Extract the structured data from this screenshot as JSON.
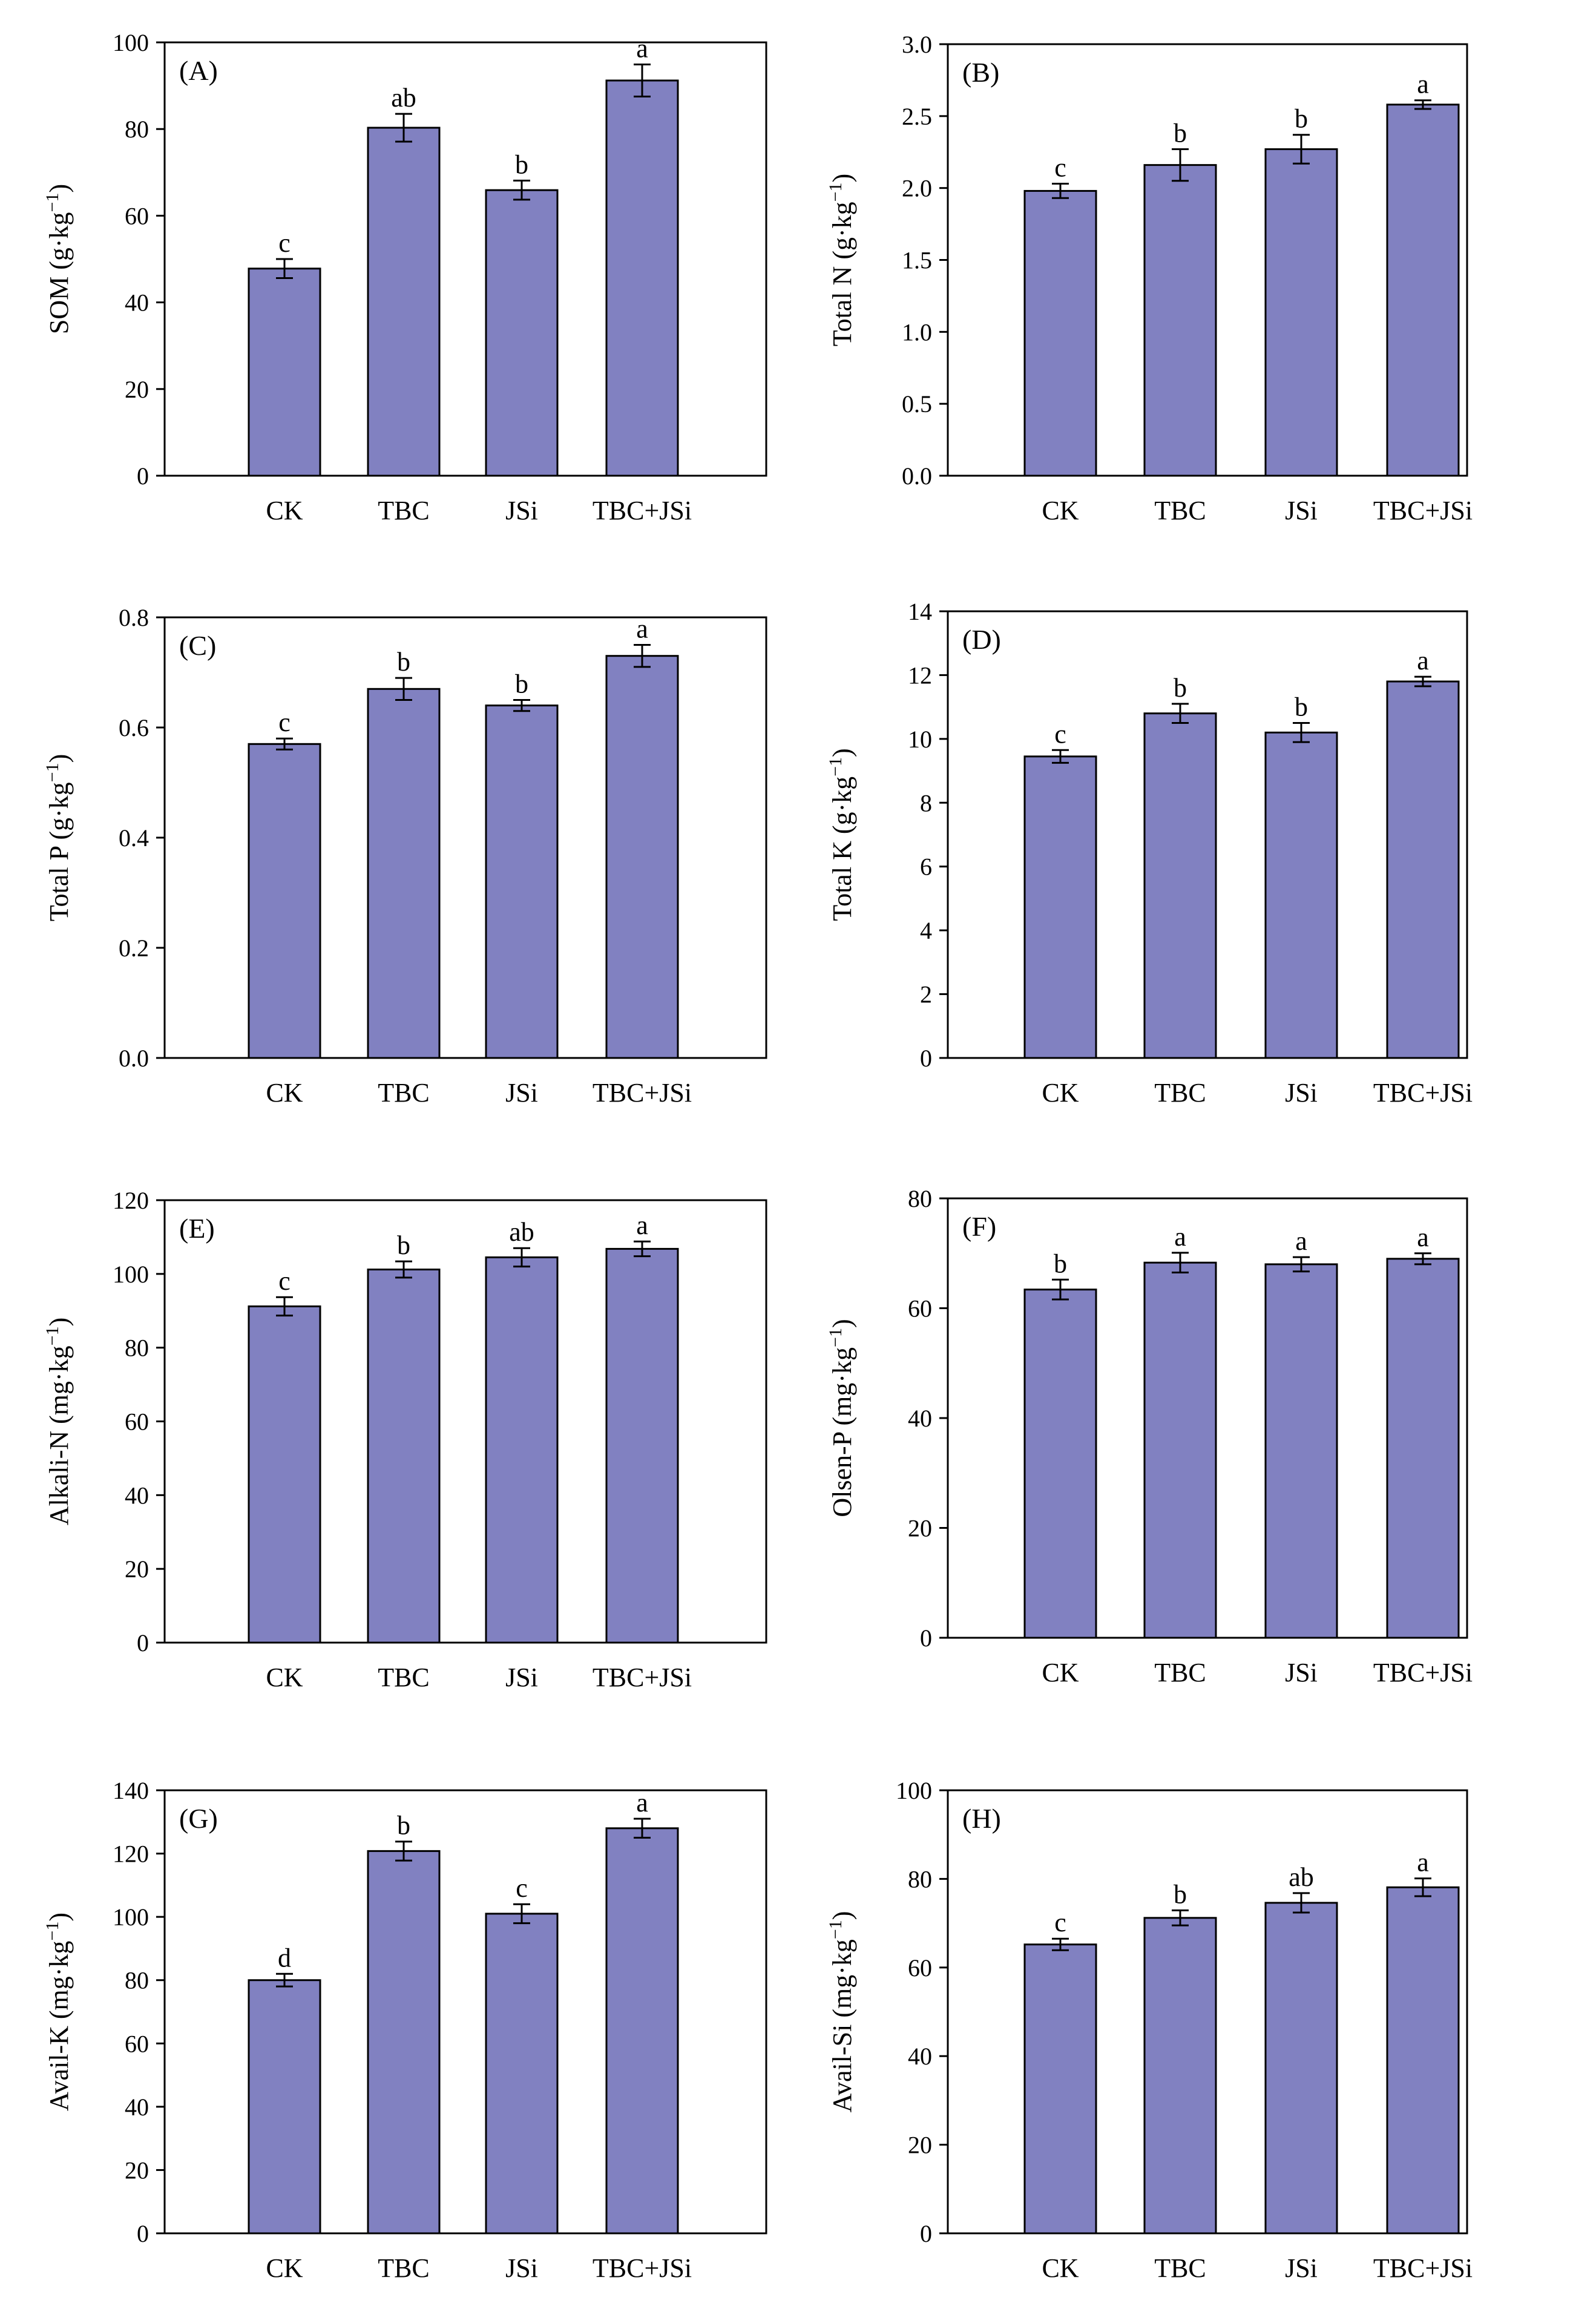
{
  "colors": {
    "bar_fill": "#8181c1",
    "bar_stroke": "#000000",
    "axis": "#000000",
    "background": "#ffffff"
  },
  "chart_data": [
    {
      "panel": "(A)",
      "type": "bar",
      "categories": [
        "CK",
        "TBC",
        "JSi",
        "TBC+JSi"
      ],
      "values": [
        47.8,
        80.3,
        65.9,
        91.2
      ],
      "errors": [
        2.2,
        3.2,
        2.2,
        3.7
      ],
      "significance": [
        "c",
        "ab",
        "b",
        "a"
      ],
      "ylabel_main": "SOM (g·kg",
      "ylabel_sup": "−1",
      "ylabel_end": ")",
      "ylim": [
        0,
        100
      ],
      "yticks": [
        0,
        20,
        40,
        60,
        80,
        100
      ],
      "ytick_labels": [
        "0",
        "20",
        "40",
        "60",
        "80",
        "100"
      ]
    },
    {
      "panel": "(B)",
      "type": "bar",
      "categories": [
        "CK",
        "TBC",
        "JSi",
        "TBC+JSi"
      ],
      "values": [
        1.98,
        2.16,
        2.27,
        2.58
      ],
      "errors": [
        0.05,
        0.11,
        0.1,
        0.03
      ],
      "significance": [
        "c",
        "b",
        "b",
        "a"
      ],
      "ylabel_main": "Total  N (g·kg",
      "ylabel_sup": "−1",
      "ylabel_end": ")",
      "ylim": [
        0,
        3
      ],
      "yticks": [
        0,
        0.5,
        1,
        1.5,
        2,
        2.5,
        3
      ],
      "ytick_labels": [
        "0.0",
        "0.5",
        "1.0",
        "1.5",
        "2.0",
        "2.5",
        "3.0"
      ]
    },
    {
      "panel": "(C)",
      "type": "bar",
      "categories": [
        "CK",
        "TBC",
        "JSi",
        "TBC+JSi"
      ],
      "values": [
        0.57,
        0.67,
        0.64,
        0.73
      ],
      "errors": [
        0.01,
        0.02,
        0.01,
        0.02
      ],
      "significance": [
        "c",
        "b",
        "b",
        "a"
      ],
      "ylabel_main": "Total  P  (g·kg",
      "ylabel_sup": "−1",
      "ylabel_end": ")",
      "ylim": [
        0,
        0.8
      ],
      "yticks": [
        0,
        0.2,
        0.4,
        0.6,
        0.8
      ],
      "ytick_labels": [
        "0.0",
        "0.2",
        "0.4",
        "0.6",
        "0.8"
      ]
    },
    {
      "panel": "(D)",
      "type": "bar",
      "categories": [
        "CK",
        "TBC",
        "JSi",
        "TBC+JSi"
      ],
      "values": [
        9.45,
        10.8,
        10.2,
        11.8
      ],
      "errors": [
        0.2,
        0.3,
        0.3,
        0.15
      ],
      "significance": [
        "c",
        "b",
        "b",
        "a"
      ],
      "ylabel_main": "Total  K  (g·kg",
      "ylabel_sup": "−1",
      "ylabel_end": ")",
      "ylim": [
        0,
        14
      ],
      "yticks": [
        0,
        2,
        4,
        6,
        8,
        10,
        12,
        14
      ],
      "ytick_labels": [
        "0",
        "2",
        "4",
        "6",
        "8",
        "10",
        "12",
        "14"
      ]
    },
    {
      "panel": "(E)",
      "type": "bar",
      "categories": [
        "CK",
        "TBC",
        "JSi",
        "TBC+JSi"
      ],
      "values": [
        91.2,
        101.2,
        104.5,
        106.8
      ],
      "errors": [
        2.5,
        2.2,
        2.5,
        2.0
      ],
      "significance": [
        "c",
        "b",
        "ab",
        "a"
      ],
      "ylabel_main": "Alkali-N (mg·kg",
      "ylabel_sup": "−1",
      "ylabel_end": ")",
      "ylim": [
        0,
        120
      ],
      "yticks": [
        0,
        20,
        40,
        60,
        80,
        100,
        120
      ],
      "ytick_labels": [
        "0",
        "20",
        "40",
        "60",
        "80",
        "100",
        "120"
      ]
    },
    {
      "panel": "(F)",
      "type": "bar",
      "categories": [
        "CK",
        "TBC",
        "JSi",
        "TBC+JSi"
      ],
      "values": [
        63.4,
        68.3,
        68.0,
        69.0
      ],
      "errors": [
        1.8,
        1.8,
        1.3,
        1.0
      ],
      "significance": [
        "b",
        "a",
        "a",
        "a"
      ],
      "ylabel_main": "Olsen-P  (mg·kg",
      "ylabel_sup": "−1",
      "ylabel_end": ")",
      "ylim": [
        0,
        80
      ],
      "yticks": [
        0,
        20,
        40,
        60,
        80
      ],
      "ytick_labels": [
        "0",
        "20",
        "40",
        "60",
        "80"
      ]
    },
    {
      "panel": "(G)",
      "type": "bar",
      "categories": [
        "CK",
        "TBC",
        "JSi",
        "TBC+JSi"
      ],
      "values": [
        80.0,
        120.8,
        101.0,
        128.0
      ],
      "errors": [
        2.0,
        3.0,
        3.0,
        3.0
      ],
      "significance": [
        "d",
        "b",
        "c",
        "a"
      ],
      "ylabel_main": "Avail-K (mg·kg",
      "ylabel_sup": "−1",
      "ylabel_end": ")",
      "ylim": [
        0,
        140
      ],
      "yticks": [
        0,
        20,
        40,
        60,
        80,
        100,
        120,
        140
      ],
      "ytick_labels": [
        "0",
        "20",
        "40",
        "60",
        "80",
        "100",
        "120",
        "140"
      ]
    },
    {
      "panel": "(H)",
      "type": "bar",
      "categories": [
        "CK",
        "TBC",
        "JSi",
        "TBC+JSi"
      ],
      "values": [
        65.2,
        71.2,
        74.6,
        78.1
      ],
      "errors": [
        1.3,
        1.7,
        2.2,
        2.0
      ],
      "significance": [
        "c",
        "b",
        "ab",
        "a"
      ],
      "ylabel_main": "Avail-Si (mg·kg",
      "ylabel_sup": "−1",
      "ylabel_end": ")",
      "ylim": [
        0,
        100
      ],
      "yticks": [
        0,
        20,
        40,
        60,
        80,
        100
      ],
      "ytick_labels": [
        "0",
        "20",
        "40",
        "60",
        "80",
        "100"
      ]
    }
  ]
}
